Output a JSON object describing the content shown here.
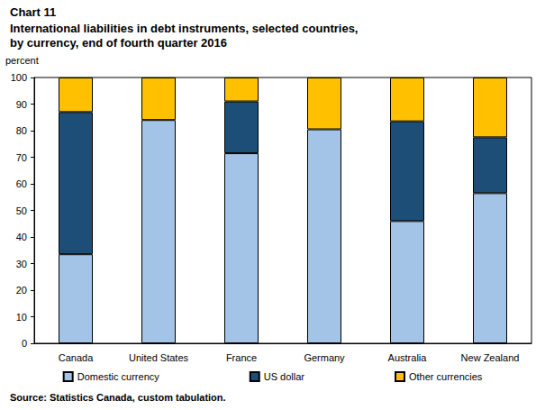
{
  "chart_data": {
    "type": "bar",
    "title": "Chart 11",
    "subtitle": "International liabilities in debt instruments, selected countries,\nby currency, end of fourth quarter 2016",
    "y_label": "percent",
    "source": "Source: Statistics Canada, custom tabulation.",
    "categories": [
      "Canada",
      "United States",
      "France",
      "Germany",
      "Australia",
      "New Zealand"
    ],
    "series": [
      {
        "name": "Domestic currency",
        "color": "#a3c4e6",
        "values": [
          33.5,
          84,
          71.5,
          80.5,
          46,
          56.5
        ]
      },
      {
        "name": "US dollar",
        "color": "#1d4e77",
        "values": [
          53.5,
          null,
          19.5,
          null,
          37.5,
          21
        ]
      },
      {
        "name": "Other currencies",
        "color": "#ffc000",
        "values": [
          13,
          16,
          9,
          19.5,
          16.5,
          22.5
        ]
      }
    ],
    "stacked": true,
    "ylim": [
      0,
      100
    ],
    "yticks": [
      0,
      10,
      20,
      30,
      40,
      50,
      60,
      70,
      80,
      90,
      100
    ],
    "grid": false,
    "legend": "bottom"
  }
}
